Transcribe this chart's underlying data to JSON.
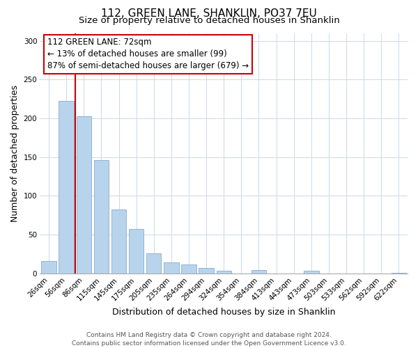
{
  "title": "112, GREEN LANE, SHANKLIN, PO37 7EU",
  "subtitle": "Size of property relative to detached houses in Shanklin",
  "xlabel": "Distribution of detached houses by size in Shanklin",
  "ylabel": "Number of detached properties",
  "bar_labels": [
    "26sqm",
    "56sqm",
    "86sqm",
    "115sqm",
    "145sqm",
    "175sqm",
    "205sqm",
    "235sqm",
    "264sqm",
    "294sqm",
    "324sqm",
    "354sqm",
    "384sqm",
    "413sqm",
    "443sqm",
    "473sqm",
    "503sqm",
    "533sqm",
    "562sqm",
    "592sqm",
    "622sqm"
  ],
  "bar_values": [
    16,
    222,
    203,
    146,
    82,
    57,
    26,
    14,
    11,
    7,
    3,
    0,
    4,
    0,
    0,
    3,
    0,
    0,
    0,
    0,
    1
  ],
  "bar_color": "#b8d4ec",
  "bar_edge_color": "#88aacc",
  "vline_color": "#cc0000",
  "vline_x_data": 1.53,
  "annotation_text_line1": "112 GREEN LANE: 72sqm",
  "annotation_text_line2": "← 13% of detached houses are smaller (99)",
  "annotation_text_line3": "87% of semi-detached houses are larger (679) →",
  "ylim": [
    0,
    310
  ],
  "yticks": [
    0,
    50,
    100,
    150,
    200,
    250,
    300
  ],
  "title_fontsize": 11,
  "subtitle_fontsize": 9.5,
  "axis_label_fontsize": 9,
  "tick_label_fontsize": 7.5,
  "annotation_fontsize": 8.5,
  "background_color": "#ffffff",
  "grid_color": "#ccd9e8",
  "footer_text": "Contains HM Land Registry data © Crown copyright and database right 2024.\nContains public sector information licensed under the Open Government Licence v3.0."
}
